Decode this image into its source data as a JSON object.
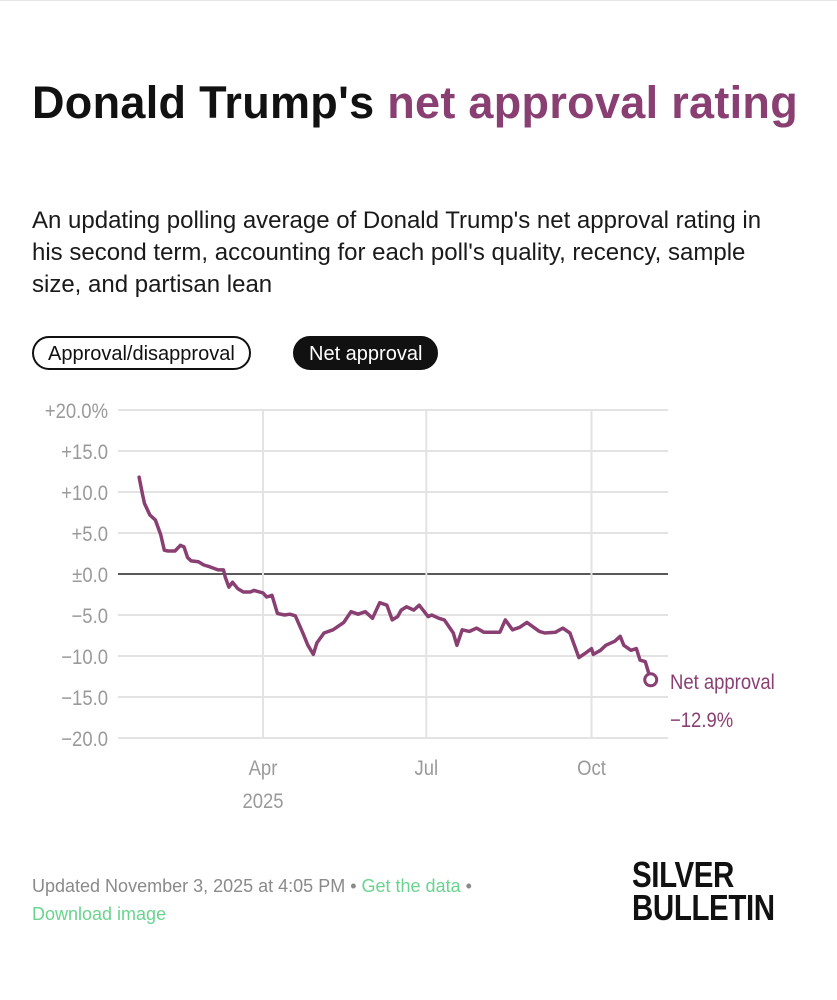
{
  "title": {
    "prefix": "Donald Trump's ",
    "accent": "net approval rating"
  },
  "subtitle": "An updating polling average of Donald Trump's net approval rating in his second term, accounting for each poll's quality, recency, sample size, and partisan lean",
  "toggles": [
    {
      "label": "Approval/disapproval",
      "selected": false
    },
    {
      "label": "Net approval",
      "selected": true
    }
  ],
  "colors": {
    "series": "#8a3f73",
    "link": "#6ad38f",
    "grid": "#e3e3e3",
    "zero_line": "#222222"
  },
  "chart_data": {
    "type": "line",
    "title": "",
    "xlabel": "",
    "ylabel": "",
    "ylim": [
      -20,
      20
    ],
    "xlim": [
      "2025-01-20",
      "2025-11-13"
    ],
    "grid": true,
    "y_ticks": [
      20,
      15,
      10,
      5,
      0,
      -5,
      -10,
      -15,
      -20
    ],
    "y_tick_labels": [
      "+20.0%",
      "+15.0",
      "+10.0",
      "+5.0",
      "±0.0",
      "−5.0",
      "−10.0",
      "−15.0",
      "−20.0"
    ],
    "x_ticks": [
      {
        "date": "2025-04-01",
        "label": "Apr",
        "sublabel": "2025"
      },
      {
        "date": "2025-07-01",
        "label": "Jul",
        "sublabel": ""
      },
      {
        "date": "2025-10-01",
        "label": "Oct",
        "sublabel": ""
      }
    ],
    "series": [
      {
        "name": "Net approval",
        "end_label": "−12.9%",
        "points": [
          [
            "2025-01-22",
            11.8
          ],
          [
            "2025-01-24",
            9.6
          ],
          [
            "2025-01-25",
            8.6
          ],
          [
            "2025-01-28",
            7.2
          ],
          [
            "2025-01-31",
            6.6
          ],
          [
            "2025-02-03",
            4.8
          ],
          [
            "2025-02-05",
            2.9
          ],
          [
            "2025-02-07",
            2.8
          ],
          [
            "2025-02-11",
            2.8
          ],
          [
            "2025-02-14",
            3.5
          ],
          [
            "2025-02-16",
            3.3
          ],
          [
            "2025-02-18",
            2.0
          ],
          [
            "2025-02-20",
            1.6
          ],
          [
            "2025-02-24",
            1.5
          ],
          [
            "2025-02-27",
            1.1
          ],
          [
            "2025-03-02",
            0.9
          ],
          [
            "2025-03-07",
            0.5
          ],
          [
            "2025-03-10",
            0.5
          ],
          [
            "2025-03-11",
            -0.4
          ],
          [
            "2025-03-13",
            -1.6
          ],
          [
            "2025-03-15",
            -1.0
          ],
          [
            "2025-03-18",
            -1.8
          ],
          [
            "2025-03-21",
            -2.2
          ],
          [
            "2025-03-25",
            -2.2
          ],
          [
            "2025-03-27",
            -2.0
          ],
          [
            "2025-04-01",
            -2.3
          ],
          [
            "2025-04-03",
            -2.8
          ],
          [
            "2025-04-06",
            -2.6
          ],
          [
            "2025-04-09",
            -4.8
          ],
          [
            "2025-04-13",
            -5.0
          ],
          [
            "2025-04-16",
            -4.9
          ],
          [
            "2025-04-19",
            -5.1
          ],
          [
            "2025-04-23",
            -7.1
          ],
          [
            "2025-04-26",
            -8.7
          ],
          [
            "2025-04-29",
            -9.8
          ],
          [
            "2025-05-01",
            -8.4
          ],
          [
            "2025-05-05",
            -7.2
          ],
          [
            "2025-05-10",
            -6.8
          ],
          [
            "2025-05-16",
            -5.9
          ],
          [
            "2025-05-20",
            -4.6
          ],
          [
            "2025-05-24",
            -4.9
          ],
          [
            "2025-05-28",
            -4.6
          ],
          [
            "2025-06-01",
            -5.4
          ],
          [
            "2025-06-05",
            -3.5
          ],
          [
            "2025-06-09",
            -3.8
          ],
          [
            "2025-06-12",
            -5.6
          ],
          [
            "2025-06-15",
            -5.2
          ],
          [
            "2025-06-17",
            -4.4
          ],
          [
            "2025-06-20",
            -4.0
          ],
          [
            "2025-06-24",
            -4.4
          ],
          [
            "2025-06-27",
            -3.8
          ],
          [
            "2025-07-02",
            -5.2
          ],
          [
            "2025-07-04",
            -5.0
          ],
          [
            "2025-07-08",
            -5.4
          ],
          [
            "2025-07-11",
            -5.6
          ],
          [
            "2025-07-16",
            -7.2
          ],
          [
            "2025-07-18",
            -8.7
          ],
          [
            "2025-07-21",
            -6.8
          ],
          [
            "2025-07-25",
            -7.0
          ],
          [
            "2025-07-29",
            -6.6
          ],
          [
            "2025-08-02",
            -7.1
          ],
          [
            "2025-08-11",
            -7.1
          ],
          [
            "2025-08-14",
            -5.6
          ],
          [
            "2025-08-18",
            -6.8
          ],
          [
            "2025-08-22",
            -6.5
          ],
          [
            "2025-08-26",
            -5.9
          ],
          [
            "2025-09-02",
            -7.0
          ],
          [
            "2025-09-05",
            -7.2
          ],
          [
            "2025-09-11",
            -7.1
          ],
          [
            "2025-09-15",
            -6.6
          ],
          [
            "2025-09-19",
            -7.2
          ],
          [
            "2025-09-24",
            -10.2
          ],
          [
            "2025-09-28",
            -9.6
          ],
          [
            "2025-10-01",
            -9.1
          ],
          [
            "2025-10-02",
            -9.8
          ],
          [
            "2025-10-06",
            -9.3
          ],
          [
            "2025-10-09",
            -8.7
          ],
          [
            "2025-10-14",
            -8.2
          ],
          [
            "2025-10-17",
            -7.6
          ],
          [
            "2025-10-19",
            -8.7
          ],
          [
            "2025-10-23",
            -9.3
          ],
          [
            "2025-10-26",
            -9.1
          ],
          [
            "2025-10-28",
            -10.5
          ],
          [
            "2025-10-31",
            -10.7
          ],
          [
            "2025-11-03",
            -12.9
          ]
        ]
      }
    ]
  },
  "footer": {
    "updated": "Updated November 3, 2025 at 4:05 PM",
    "separator": " • ",
    "get_data": "Get the data",
    "download": "Download image"
  },
  "logo": {
    "line1": "SILVER",
    "line2": "BULLETIN"
  }
}
